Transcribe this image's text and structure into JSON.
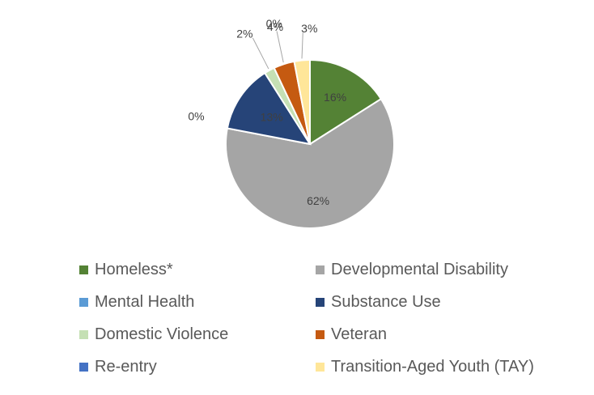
{
  "chart_data": {
    "type": "pie",
    "title": "",
    "start_angle_deg": 0,
    "slices": [
      {
        "name": "Homeless*",
        "value": 16,
        "label": "16%",
        "color": "#548235"
      },
      {
        "name": "Developmental Disability",
        "value": 62,
        "label": "62%",
        "color": "#A5A5A5"
      },
      {
        "name": "Mental Health",
        "value": 0,
        "label": "0%",
        "color": "#5B9BD5"
      },
      {
        "name": "Substance Use",
        "value": 13,
        "label": "13%",
        "color": "#264478"
      },
      {
        "name": "Domestic Violence",
        "value": 2,
        "label": "2%",
        "color": "#C5E0B4"
      },
      {
        "name": "Veteran",
        "value": 4,
        "label": "4%",
        "color": "#C55A11"
      },
      {
        "name": "Re-entry",
        "value": 0,
        "label": "0%",
        "color": "#4472C4"
      },
      {
        "name": "Transition-Aged Youth (TAY)",
        "value": 3,
        "label": "3%",
        "color": "#FFE699"
      }
    ],
    "legend": {
      "placement": "bottom",
      "columns": 2,
      "order": [
        "Homeless*",
        "Developmental Disability",
        "Mental Health",
        "Substance Use",
        "Domestic Violence",
        "Veteran",
        "Re-entry",
        "Transition-Aged Youth (TAY)"
      ]
    }
  }
}
